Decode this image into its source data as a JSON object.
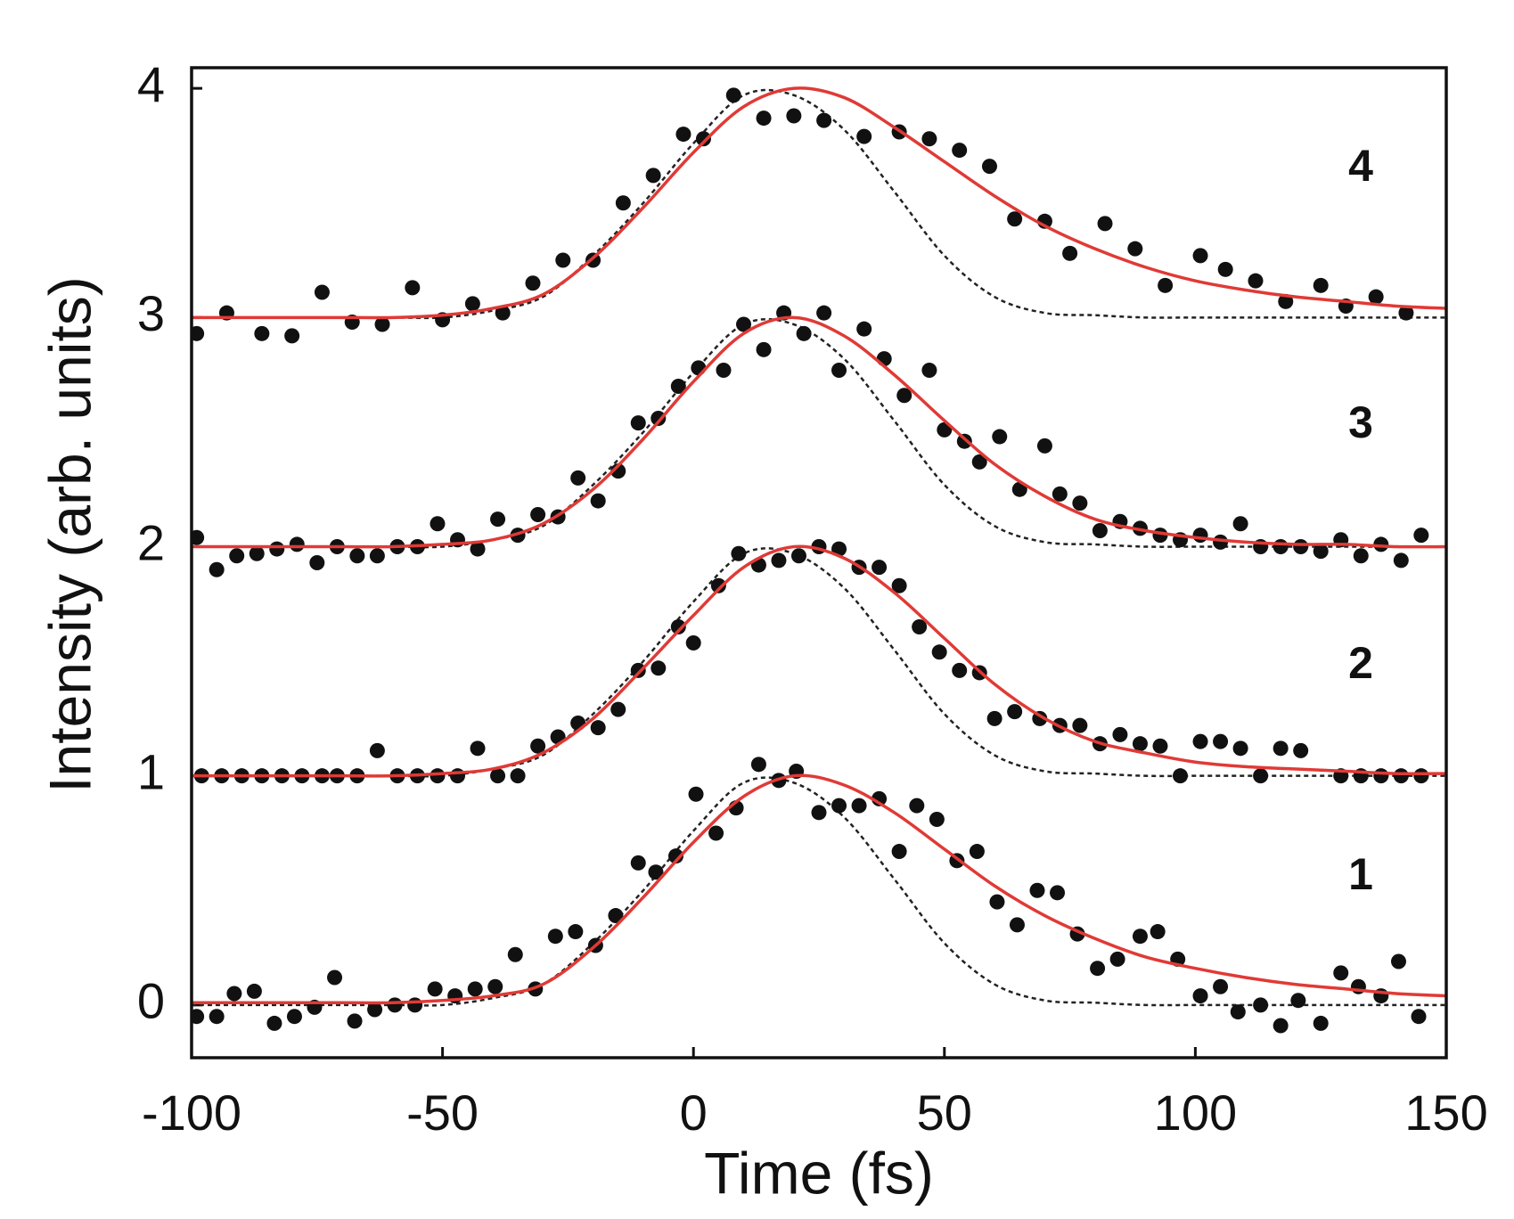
{
  "chart_data": {
    "type": "scatter",
    "xlabel": "Time (fs)",
    "ylabel": "Intensity (arb. units)",
    "xlim": [
      -100,
      150
    ],
    "ylim": [
      -0.23,
      4.09
    ],
    "xticks": [
      -100,
      -50,
      0,
      50,
      100,
      150
    ],
    "yticks": [
      0,
      1,
      2,
      3,
      4
    ],
    "marker_color": "#111111",
    "fit_color": "#e03a36",
    "reference_color": "#222222",
    "series": [
      {
        "name": "1",
        "x": [
          -99,
          -95,
          -91.5,
          -87.5,
          -83.5,
          -79.5,
          -75.5,
          -71.5,
          -67.5,
          -63.5,
          -59.5,
          -55.5,
          -51.5,
          -47.5,
          -43.5,
          -39.5,
          -35.5,
          -31.5,
          -27.5,
          -23.5,
          -19.5,
          -15.5,
          -11,
          -7.5,
          -3.5,
          0.5,
          4.5,
          8.5,
          13,
          17,
          20.5,
          25,
          29,
          33,
          37,
          41,
          44.5,
          48.5,
          52.5,
          56.5,
          60.5,
          64.5,
          68.5,
          72.5,
          76.5,
          80.5,
          84.5,
          89,
          92.5,
          96.5,
          101,
          105,
          108.5,
          113,
          117,
          120.5,
          125,
          129,
          132.5,
          137,
          140.5,
          144.5
        ],
        "values": [
          -0.05,
          -0.05,
          0.05,
          0.06,
          -0.08,
          -0.05,
          -0.01,
          0.12,
          -0.07,
          -0.02,
          0,
          0,
          0.07,
          0.04,
          0.07,
          0.08,
          0.22,
          0.07,
          0.3,
          0.32,
          0.26,
          0.39,
          0.62,
          0.58,
          0.65,
          0.92,
          0.75,
          0.86,
          1.05,
          0.98,
          1.02,
          0.84,
          0.87,
          0.87,
          0.9,
          0.67,
          0.87,
          0.81,
          0.63,
          0.67,
          0.45,
          0.35,
          0.5,
          0.49,
          0.31,
          0.16,
          0.2,
          0.3,
          0.32,
          0.2,
          0.04,
          0.08,
          -0.03,
          0,
          -0.09,
          0.02,
          -0.08,
          0.14,
          0.08,
          0.04,
          0.19,
          -0.05
        ]
      },
      {
        "name": "2",
        "x": [
          -98,
          -94,
          -90,
          -86,
          -82,
          -78,
          -74,
          -71,
          -67,
          -63,
          -59,
          -55,
          -51,
          -47,
          -43,
          -39,
          -35,
          -31,
          -27,
          -23,
          -19,
          -15,
          -11,
          -7,
          -3,
          0,
          5,
          9,
          13,
          17,
          21,
          25,
          29,
          33,
          37,
          41,
          45,
          49,
          53,
          57,
          60,
          64,
          69,
          73,
          77,
          81,
          85,
          89,
          93,
          97,
          101,
          105,
          109,
          113,
          117,
          121,
          129,
          133,
          137,
          141,
          145
        ],
        "values": [
          1,
          1,
          1,
          1,
          1,
          1,
          1,
          1,
          1,
          1.11,
          1,
          1,
          1,
          1,
          1.12,
          1,
          1,
          1.13,
          1.17,
          1.23,
          1.21,
          1.29,
          1.46,
          1.47,
          1.65,
          1.58,
          1.83,
          1.97,
          1.92,
          1.94,
          1.96,
          2,
          1.99,
          1.91,
          1.91,
          1.83,
          1.65,
          1.54,
          1.46,
          1.45,
          1.25,
          1.28,
          1.25,
          1.22,
          1.22,
          1.14,
          1.18,
          1.14,
          1.13,
          1,
          1.15,
          1.15,
          1.12,
          1,
          1.12,
          1.11,
          1,
          1,
          1,
          1,
          1
        ]
      },
      {
        "name": "3",
        "x": [
          -99,
          -95,
          -91,
          -87,
          -83,
          -79,
          -75,
          -71,
          -67,
          -63,
          -59,
          -55,
          -51,
          -47,
          -43,
          -39,
          -35,
          -31,
          -27,
          -23,
          -19,
          -15,
          -11,
          -7,
          -3,
          1,
          6,
          10,
          14,
          18,
          22,
          26,
          29,
          34,
          38,
          42,
          47,
          50,
          54,
          57,
          61,
          65,
          70,
          73,
          77,
          81,
          85,
          89,
          93,
          97,
          101,
          105,
          109,
          113,
          117,
          121,
          125,
          129,
          133,
          137,
          141,
          145
        ],
        "values": [
          2.04,
          1.9,
          1.96,
          1.97,
          1.99,
          2.01,
          1.93,
          2,
          1.96,
          1.96,
          2,
          2,
          2.1,
          2.03,
          1.99,
          2.12,
          2.05,
          2.14,
          2.13,
          2.3,
          2.2,
          2.33,
          2.54,
          2.56,
          2.7,
          2.78,
          2.77,
          2.97,
          2.86,
          3.02,
          2.93,
          3.02,
          2.77,
          2.95,
          2.82,
          2.66,
          2.77,
          2.51,
          2.46,
          2.37,
          2.48,
          2.25,
          2.44,
          2.23,
          2.19,
          2.07,
          2.11,
          2.08,
          2.05,
          2.03,
          2.05,
          2.02,
          2.1,
          2,
          2,
          2,
          1.98,
          2.03,
          1.96,
          2.01,
          1.94,
          2.05
        ]
      },
      {
        "name": "4",
        "x": [
          -99,
          -93,
          -86,
          -80,
          -74,
          -68,
          -62,
          -56,
          -50,
          -44,
          -38,
          -32,
          -26,
          -20,
          -14,
          -8,
          -2,
          2,
          8,
          14,
          20,
          26,
          34,
          41,
          47,
          53,
          59,
          64,
          70,
          75,
          82,
          88,
          94,
          101,
          106,
          112,
          118,
          125,
          130,
          136,
          142
        ],
        "values": [
          2.93,
          3.02,
          2.93,
          2.92,
          3.11,
          2.98,
          2.97,
          3.13,
          2.99,
          3.06,
          3.02,
          3.15,
          3.25,
          3.25,
          3.5,
          3.62,
          3.8,
          3.78,
          3.97,
          3.87,
          3.88,
          3.86,
          3.79,
          3.81,
          3.78,
          3.73,
          3.66,
          3.43,
          3.42,
          3.28,
          3.41,
          3.3,
          3.14,
          3.27,
          3.21,
          3.16,
          3.07,
          3.14,
          3.05,
          3.09,
          3.02
        ]
      }
    ],
    "curve_x": [
      -100,
      -90,
      -80,
      -70,
      -60,
      -50,
      -40,
      -30,
      -20,
      -10,
      0,
      10,
      20,
      30,
      40,
      50,
      60,
      70,
      80,
      90,
      100,
      110,
      120,
      130,
      140,
      150
    ],
    "fits": [
      [
        0.01,
        0.01,
        0.01,
        0.01,
        0.01,
        0.02,
        0.04,
        0.09,
        0.25,
        0.47,
        0.71,
        0.91,
        1,
        0.96,
        0.84,
        0.68,
        0.52,
        0.39,
        0.29,
        0.21,
        0.16,
        0.12,
        0.09,
        0.07,
        0.05,
        0.04
      ],
      [
        1,
        1,
        1,
        1,
        1,
        1.01,
        1.03,
        1.1,
        1.25,
        1.47,
        1.7,
        1.91,
        2,
        1.95,
        1.8,
        1.6,
        1.4,
        1.25,
        1.15,
        1.1,
        1.06,
        1.04,
        1.03,
        1.02,
        1.01,
        1.01
      ],
      [
        2,
        2,
        2,
        2,
        2,
        2.01,
        2.03,
        2.1,
        2.25,
        2.47,
        2.72,
        2.93,
        3,
        2.92,
        2.75,
        2.55,
        2.36,
        2.22,
        2.12,
        2.07,
        2.04,
        2.02,
        2.01,
        2.01,
        2,
        2
      ],
      [
        3,
        3,
        3,
        3,
        3,
        3.01,
        3.04,
        3.1,
        3.26,
        3.48,
        3.72,
        3.92,
        4,
        3.96,
        3.83,
        3.68,
        3.53,
        3.4,
        3.3,
        3.22,
        3.16,
        3.12,
        3.09,
        3.07,
        3.05,
        3.04
      ]
    ],
    "references": [
      [
        0,
        0,
        0,
        0,
        0,
        0,
        0.03,
        0.09,
        0.27,
        0.5,
        0.76,
        0.97,
        0.97,
        0.82,
        0.55,
        0.27,
        0.09,
        0.02,
        0.01,
        0,
        0,
        0,
        0,
        0,
        0,
        0
      ],
      [
        1,
        1,
        1,
        1,
        1,
        1,
        1.03,
        1.09,
        1.27,
        1.5,
        1.76,
        1.97,
        1.97,
        1.82,
        1.55,
        1.27,
        1.09,
        1.02,
        1.01,
        1,
        1,
        1,
        1,
        1,
        1,
        1
      ],
      [
        2,
        2,
        2,
        2,
        2,
        2,
        2.03,
        2.09,
        2.27,
        2.5,
        2.76,
        2.97,
        2.97,
        2.82,
        2.55,
        2.27,
        2.09,
        2.02,
        2.01,
        2,
        2,
        2,
        2,
        2,
        2,
        2
      ],
      [
        3,
        3,
        3,
        3,
        3,
        3,
        3.03,
        3.09,
        3.27,
        3.5,
        3.76,
        3.97,
        3.97,
        3.82,
        3.55,
        3.27,
        3.09,
        3.02,
        3.01,
        3,
        3,
        3,
        3,
        3,
        3,
        3
      ]
    ]
  }
}
